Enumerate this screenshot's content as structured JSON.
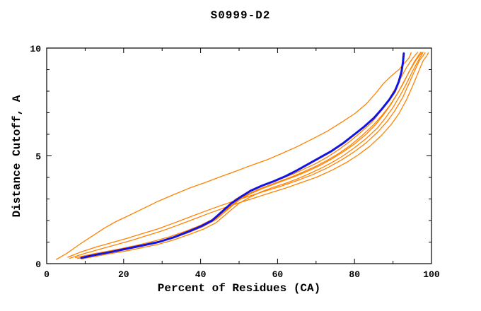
{
  "window": {
    "title": "S0999-D2"
  },
  "chart_data": {
    "type": "line",
    "title": "S0999-D2",
    "xlabel": "Percent of Residues (CA)",
    "ylabel": "Distance Cutoff, A",
    "xlim": [
      0,
      100
    ],
    "ylim": [
      0,
      10
    ],
    "xticks_major": [
      0,
      20,
      40,
      60,
      80,
      100
    ],
    "xticks_minor": [
      10,
      30,
      50,
      70,
      90
    ],
    "yticks_major": [
      0,
      5,
      10
    ],
    "yticks_minor": [
      1,
      2,
      3,
      4,
      6,
      7,
      8,
      9
    ],
    "grid": false,
    "legend": "none",
    "colors": {
      "orange_curves": "#ff8200",
      "blue_curve": "#1414e0",
      "axis": "#000000",
      "background": "#ffffff"
    },
    "series": [
      {
        "name": "orange-outlier",
        "color": "#ff8200",
        "width": 1.3,
        "points": [
          [
            2.5,
            0.2
          ],
          [
            5,
            0.45
          ],
          [
            7,
            0.7
          ],
          [
            9,
            0.95
          ],
          [
            12,
            1.3
          ],
          [
            15,
            1.65
          ],
          [
            18,
            1.95
          ],
          [
            21,
            2.2
          ],
          [
            25,
            2.55
          ],
          [
            29,
            2.9
          ],
          [
            33,
            3.2
          ],
          [
            37,
            3.5
          ],
          [
            41,
            3.75
          ],
          [
            45,
            4.02
          ],
          [
            49,
            4.28
          ],
          [
            53,
            4.55
          ],
          [
            57,
            4.8
          ],
          [
            61,
            5.1
          ],
          [
            65,
            5.42
          ],
          [
            69,
            5.78
          ],
          [
            73,
            6.15
          ],
          [
            77,
            6.6
          ],
          [
            80,
            6.95
          ],
          [
            83,
            7.4
          ],
          [
            85.5,
            7.9
          ],
          [
            87.5,
            8.35
          ],
          [
            89.5,
            8.7
          ],
          [
            91.5,
            9.0
          ],
          [
            93,
            9.3
          ],
          [
            94.2,
            9.55
          ],
          [
            94.7,
            9.78
          ]
        ]
      },
      {
        "name": "orange-pair-upper",
        "color": "#ff8200",
        "width": 1.3,
        "points": [
          [
            5.5,
            0.3
          ],
          [
            9,
            0.55
          ],
          [
            13,
            0.78
          ],
          [
            17,
            0.98
          ],
          [
            21,
            1.18
          ],
          [
            25,
            1.4
          ],
          [
            29,
            1.62
          ],
          [
            33,
            1.88
          ],
          [
            37,
            2.15
          ],
          [
            41,
            2.42
          ],
          [
            45,
            2.68
          ],
          [
            49,
            2.92
          ],
          [
            53,
            3.15
          ],
          [
            57,
            3.38
          ],
          [
            61,
            3.6
          ],
          [
            65,
            3.85
          ],
          [
            69,
            4.12
          ],
          [
            73,
            4.45
          ],
          [
            77,
            4.85
          ],
          [
            80,
            5.2
          ],
          [
            83,
            5.6
          ],
          [
            86,
            6.1
          ],
          [
            88.5,
            6.6
          ],
          [
            90.5,
            7.1
          ],
          [
            92.5,
            7.7
          ],
          [
            94,
            8.3
          ],
          [
            95.5,
            8.9
          ],
          [
            96.8,
            9.4
          ],
          [
            97.8,
            9.65
          ],
          [
            98.3,
            9.78
          ]
        ]
      },
      {
        "name": "orange-pair-lower",
        "color": "#ff8200",
        "width": 1.3,
        "points": [
          [
            6,
            0.25
          ],
          [
            10,
            0.48
          ],
          [
            14,
            0.68
          ],
          [
            18,
            0.88
          ],
          [
            22,
            1.08
          ],
          [
            26,
            1.3
          ],
          [
            30,
            1.52
          ],
          [
            34,
            1.78
          ],
          [
            38,
            2.05
          ],
          [
            42,
            2.32
          ],
          [
            46,
            2.58
          ],
          [
            50,
            2.82
          ],
          [
            54,
            3.05
          ],
          [
            58,
            3.28
          ],
          [
            62,
            3.5
          ],
          [
            66,
            3.75
          ],
          [
            70,
            4.0
          ],
          [
            74,
            4.32
          ],
          [
            78,
            4.7
          ],
          [
            81,
            5.05
          ],
          [
            84,
            5.45
          ],
          [
            87,
            5.95
          ],
          [
            89.5,
            6.45
          ],
          [
            91.5,
            6.95
          ],
          [
            93.5,
            7.6
          ],
          [
            95,
            8.2
          ],
          [
            96.5,
            8.85
          ],
          [
            97.8,
            9.4
          ],
          [
            98.8,
            9.65
          ],
          [
            99.2,
            9.78
          ]
        ]
      },
      {
        "name": "orange-bundle-1",
        "color": "#ff8200",
        "width": 1.3,
        "points": [
          [
            7.5,
            0.28
          ],
          [
            12,
            0.45
          ],
          [
            16,
            0.58
          ],
          [
            20,
            0.72
          ],
          [
            24,
            0.88
          ],
          [
            28,
            1.05
          ],
          [
            32,
            1.25
          ],
          [
            36,
            1.5
          ],
          [
            40,
            1.78
          ],
          [
            43,
            2.05
          ],
          [
            46,
            2.5
          ],
          [
            49,
            2.98
          ],
          [
            52,
            3.3
          ],
          [
            55,
            3.55
          ],
          [
            58,
            3.75
          ],
          [
            61,
            3.95
          ],
          [
            64,
            4.15
          ],
          [
            67,
            4.4
          ],
          [
            70,
            4.65
          ],
          [
            73,
            4.95
          ],
          [
            76,
            5.3
          ],
          [
            79,
            5.7
          ],
          [
            82,
            6.15
          ],
          [
            84.5,
            6.55
          ],
          [
            86.5,
            7.0
          ],
          [
            88.5,
            7.5
          ],
          [
            90.5,
            8.1
          ],
          [
            92,
            8.6
          ],
          [
            93.5,
            9.1
          ],
          [
            95,
            9.5
          ],
          [
            96,
            9.72
          ],
          [
            96.4,
            9.8
          ]
        ]
      },
      {
        "name": "orange-bundle-2",
        "color": "#ff8200",
        "width": 1.3,
        "points": [
          [
            8,
            0.24
          ],
          [
            12,
            0.38
          ],
          [
            16,
            0.52
          ],
          [
            20,
            0.66
          ],
          [
            24,
            0.8
          ],
          [
            28,
            0.97
          ],
          [
            32,
            1.17
          ],
          [
            36,
            1.42
          ],
          [
            40,
            1.7
          ],
          [
            43,
            1.95
          ],
          [
            46,
            2.4
          ],
          [
            49,
            2.85
          ],
          [
            52,
            3.2
          ],
          [
            55,
            3.45
          ],
          [
            58,
            3.65
          ],
          [
            61,
            3.85
          ],
          [
            64,
            4.05
          ],
          [
            67,
            4.28
          ],
          [
            70,
            4.52
          ],
          [
            73,
            4.8
          ],
          [
            76,
            5.12
          ],
          [
            79,
            5.5
          ],
          [
            82,
            5.95
          ],
          [
            85,
            6.45
          ],
          [
            87,
            6.85
          ],
          [
            89,
            7.3
          ],
          [
            91,
            7.85
          ],
          [
            92.5,
            8.3
          ],
          [
            94,
            8.85
          ],
          [
            95.5,
            9.35
          ],
          [
            96.7,
            9.68
          ],
          [
            97.2,
            9.8
          ]
        ]
      },
      {
        "name": "orange-bundle-3",
        "color": "#ff8200",
        "width": 1.3,
        "points": [
          [
            8.5,
            0.25
          ],
          [
            13,
            0.4
          ],
          [
            17,
            0.53
          ],
          [
            21,
            0.67
          ],
          [
            25,
            0.82
          ],
          [
            29,
            1.0
          ],
          [
            33,
            1.2
          ],
          [
            37,
            1.45
          ],
          [
            41,
            1.75
          ],
          [
            44,
            2.05
          ],
          [
            47,
            2.5
          ],
          [
            50,
            2.95
          ],
          [
            53,
            3.25
          ],
          [
            56,
            3.48
          ],
          [
            59,
            3.68
          ],
          [
            62,
            3.88
          ],
          [
            65,
            4.08
          ],
          [
            68,
            4.3
          ],
          [
            71,
            4.55
          ],
          [
            74,
            4.85
          ],
          [
            77,
            5.18
          ],
          [
            80,
            5.55
          ],
          [
            83,
            6.0
          ],
          [
            85.5,
            6.45
          ],
          [
            87.5,
            6.9
          ],
          [
            89.5,
            7.4
          ],
          [
            91.5,
            8.0
          ],
          [
            93,
            8.5
          ],
          [
            94.5,
            9.0
          ],
          [
            96,
            9.45
          ],
          [
            97.1,
            9.7
          ],
          [
            97.5,
            9.8
          ]
        ]
      },
      {
        "name": "orange-bundle-4",
        "color": "#ff8200",
        "width": 1.3,
        "points": [
          [
            9,
            0.22
          ],
          [
            13,
            0.35
          ],
          [
            17,
            0.48
          ],
          [
            21,
            0.6
          ],
          [
            25,
            0.75
          ],
          [
            29,
            0.9
          ],
          [
            33,
            1.1
          ],
          [
            37,
            1.35
          ],
          [
            41,
            1.62
          ],
          [
            44,
            1.9
          ],
          [
            47,
            2.35
          ],
          [
            50,
            2.8
          ],
          [
            53,
            3.1
          ],
          [
            56,
            3.35
          ],
          [
            59,
            3.55
          ],
          [
            62,
            3.72
          ],
          [
            65,
            3.92
          ],
          [
            68,
            4.15
          ],
          [
            71,
            4.4
          ],
          [
            74,
            4.68
          ],
          [
            77,
            5.0
          ],
          [
            80,
            5.38
          ],
          [
            83,
            5.8
          ],
          [
            86,
            6.3
          ],
          [
            88,
            6.75
          ],
          [
            90,
            7.25
          ],
          [
            92,
            7.85
          ],
          [
            93.5,
            8.35
          ],
          [
            95,
            8.9
          ],
          [
            96.5,
            9.4
          ],
          [
            97.4,
            9.68
          ],
          [
            97.8,
            9.8
          ]
        ]
      },
      {
        "name": "blue-highlight",
        "color": "#1414e0",
        "width": 3,
        "points": [
          [
            9,
            0.27
          ],
          [
            13,
            0.42
          ],
          [
            17,
            0.55
          ],
          [
            21,
            0.7
          ],
          [
            25,
            0.85
          ],
          [
            29,
            1.0
          ],
          [
            33,
            1.22
          ],
          [
            37,
            1.5
          ],
          [
            40,
            1.72
          ],
          [
            43,
            2.0
          ],
          [
            45.5,
            2.4
          ],
          [
            48,
            2.8
          ],
          [
            50.5,
            3.1
          ],
          [
            53,
            3.38
          ],
          [
            56,
            3.62
          ],
          [
            59,
            3.82
          ],
          [
            62,
            4.05
          ],
          [
            65,
            4.32
          ],
          [
            68,
            4.62
          ],
          [
            71,
            4.92
          ],
          [
            74,
            5.22
          ],
          [
            77,
            5.58
          ],
          [
            80,
            6.0
          ],
          [
            82.5,
            6.35
          ],
          [
            85,
            6.75
          ],
          [
            87,
            7.15
          ],
          [
            89,
            7.6
          ],
          [
            90.5,
            8.0
          ],
          [
            91.5,
            8.45
          ],
          [
            92.2,
            8.9
          ],
          [
            92.6,
            9.35
          ],
          [
            92.8,
            9.75
          ]
        ]
      }
    ]
  }
}
